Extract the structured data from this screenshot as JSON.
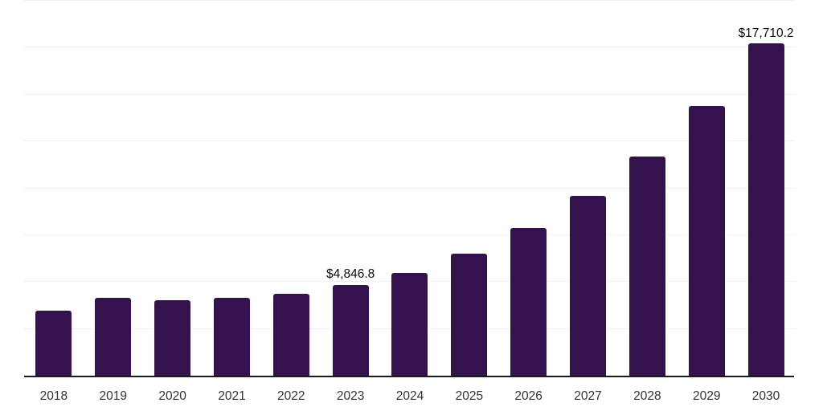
{
  "chart_data": {
    "type": "bar",
    "title": "",
    "xlabel": "",
    "ylabel": "",
    "categories": [
      "2018",
      "2019",
      "2020",
      "2021",
      "2022",
      "2023",
      "2024",
      "2025",
      "2026",
      "2027",
      "2028",
      "2029",
      "2030"
    ],
    "values": [
      3450,
      4140,
      4040,
      4170,
      4360,
      4846.8,
      5500,
      6520,
      7880,
      9590,
      11710,
      14400,
      17710.2
    ],
    "bar_labels": [
      "",
      "",
      "",
      "",
      "",
      "$4,846.8",
      "",
      "",
      "",
      "",
      "",
      "",
      "$17,710.2"
    ],
    "ylim": [
      0,
      20000
    ],
    "gridline_step": 2500,
    "grid": "horizontal-only",
    "legend_position": "none",
    "y_tick_labels_visible": false,
    "colors": {
      "bar": "#34124d",
      "axis": "#1b1b1b",
      "gridline": "#f0f0f0",
      "bar_label_text": "#0d0d0d",
      "tick_label_text": "#333333",
      "background": "#ffffff"
    }
  }
}
